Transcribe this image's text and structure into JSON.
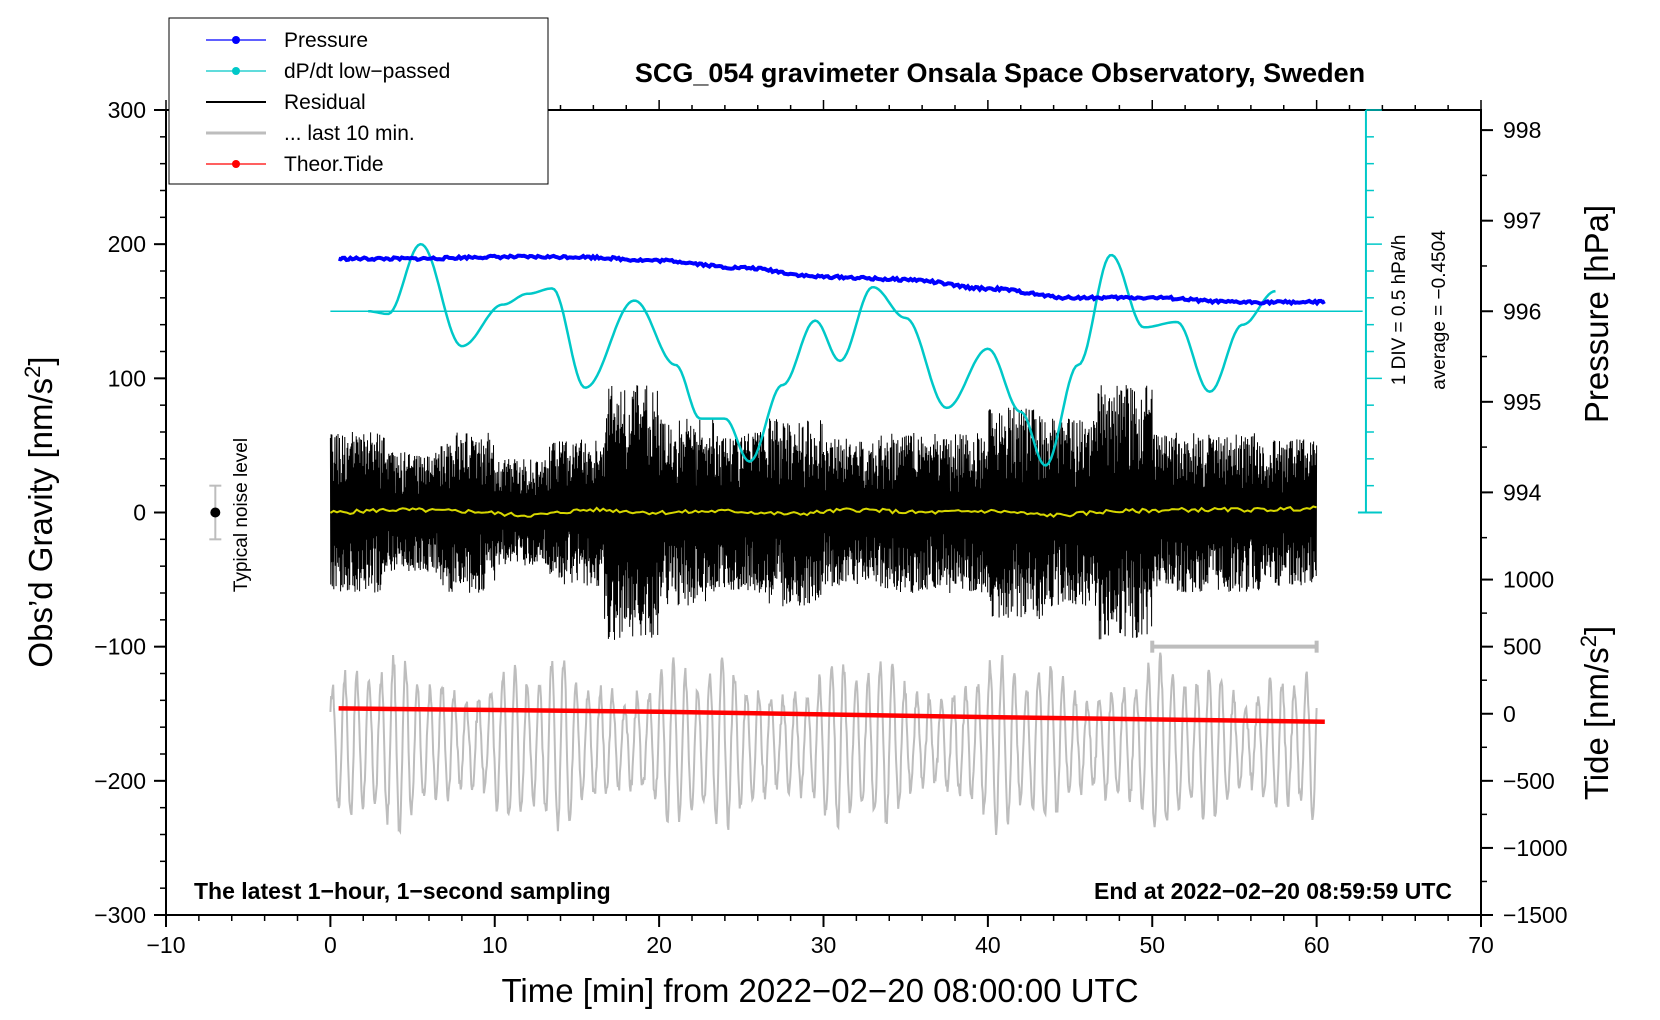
{
  "chart_data": {
    "type": "line",
    "title": "SCG_054 gravimeter Onsala Space Observatory, Sweden",
    "xlabel": "Time [min] from 2022−02−20 08:00:00 UTC",
    "ylabel_left": "Obs’d Gravity [nm/s",
    "ylabel_left_sup": "2",
    "ylabel_left_end": "]",
    "ylabel_right_top": "Pressure [hPa]",
    "ylabel_right_bottom": "Tide [nm/s",
    "ylabel_right_bottom_sup": "2",
    "ylabel_right_bottom_end": "]",
    "xlim": [
      -10,
      70
    ],
    "ylim_left": [
      -300,
      300
    ],
    "pressure_ticks": [
      994,
      995,
      996,
      997,
      998
    ],
    "tide_ticks": [
      -1500,
      -1000,
      -500,
      0,
      500,
      1000
    ],
    "x_ticks": [
      -10,
      0,
      10,
      20,
      30,
      40,
      50,
      60,
      70
    ],
    "y_ticks": [
      -300,
      -200,
      -100,
      0,
      100,
      200,
      300
    ],
    "tick_labels_x": [
      "−10",
      "0",
      "10",
      "20",
      "30",
      "40",
      "50",
      "60",
      "70"
    ],
    "tick_labels_y": [
      "−300",
      "−200",
      "−100",
      "0",
      "100",
      "200",
      "300"
    ],
    "tick_labels_pressure": [
      "994",
      "995",
      "996",
      "997",
      "998"
    ],
    "tick_labels_tide": [
      "−1500",
      "−1000",
      "−500",
      "0",
      "500",
      "1000"
    ],
    "legend": [
      {
        "label": "Pressure",
        "color": "#0000ff",
        "marker": true
      },
      {
        "label": "dP/dt low−passed",
        "color": "#00c8c8",
        "marker": true
      },
      {
        "label": "Residual",
        "color": "#000000",
        "marker": false
      },
      {
        "label": "... last 10 min.",
        "color": "#bdbdbd",
        "marker": false
      },
      {
        "label": "Theor.Tide",
        "color": "#ff0000",
        "marker": true
      }
    ],
    "series": [
      {
        "name": "Pressure",
        "axis": "pressure",
        "color": "#0000ff",
        "x": [
          0,
          5,
          10,
          15,
          20,
          25,
          30,
          35,
          40,
          45,
          50,
          55,
          60
        ],
        "values": [
          996.58,
          996.58,
          996.6,
          996.6,
          996.56,
          996.48,
          996.38,
          996.35,
          996.25,
          996.15,
          996.15,
          996.1,
          996.1
        ]
      },
      {
        "name": "dP/dt low−passed",
        "color": "#00c8c8",
        "x": [
          2.3,
          3.5,
          5.5,
          8,
          10.5,
          12,
          13.5,
          15.5,
          18.5,
          21,
          22.5,
          24,
          25.5,
          27.5,
          29.5,
          31,
          33,
          35,
          37.5,
          40,
          42,
          43.5,
          45.5,
          47.5,
          49.5,
          51.5,
          53.5,
          55.5,
          57.5
        ],
        "values": [
          150,
          148,
          200,
          124,
          155,
          163,
          167,
          93,
          158,
          110,
          70,
          70,
          38,
          95,
          143,
          113,
          168,
          145,
          78,
          122,
          75,
          35,
          110,
          192,
          138,
          142,
          90,
          140,
          165
        ],
        "baseline": 150
      },
      {
        "name": "Residual",
        "color": "#000000",
        "amplitude": [
          60,
          45,
          60,
          40,
          55,
          95,
          70,
          60,
          70,
          55,
          60,
          60,
          80,
          70,
          95,
          60,
          60,
          55
        ]
      },
      {
        "name": "Residual mean",
        "color": "#d7d700",
        "values": [
          0,
          2,
          1,
          -2,
          2,
          0,
          1,
          -1,
          2,
          0,
          1,
          -2,
          1,
          2,
          2,
          3
        ]
      },
      {
        "name": "... last 10 min.",
        "color": "#bdbdbd",
        "x_range": [
          50,
          60
        ],
        "y": -100
      },
      {
        "name": "Theor.Tide",
        "axis": "tide",
        "color": "#ff0000",
        "x": [
          0.5,
          20,
          40,
          60.5
        ],
        "values": [
          40,
          15,
          -25,
          -60
        ]
      }
    ],
    "noise_level": {
      "label": "Typical noise level",
      "x": -7,
      "y": 0,
      "range": [
        -20,
        20
      ]
    },
    "scale_bar": {
      "label_div": "1 DIV = 0.5 hPa/h",
      "label_avg": "average = −0.4504",
      "x": 63,
      "y_range": [
        0,
        300
      ]
    },
    "footer_left": "The latest 1−hour, 1−second sampling",
    "footer_right": "End at 2022−02−20 08:59:59 UTC"
  }
}
